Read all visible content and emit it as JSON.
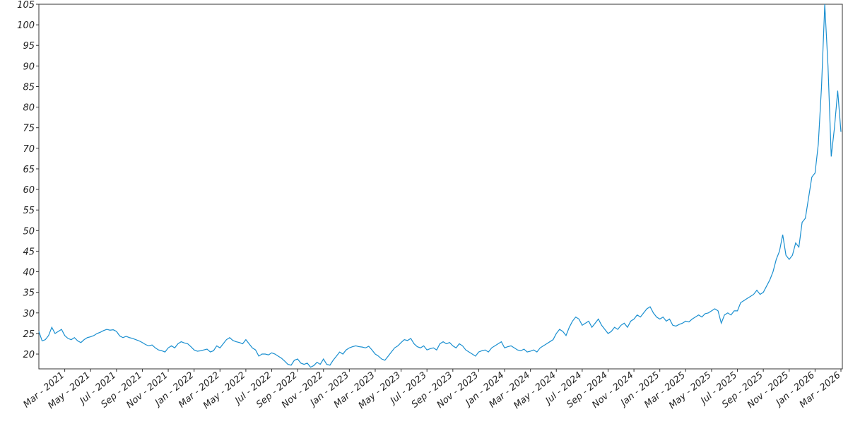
{
  "chart_data": {
    "type": "line",
    "color": "#1a8fd0",
    "ylim": [
      16.4,
      105
    ],
    "yticks": [
      20,
      25,
      30,
      35,
      40,
      45,
      50,
      55,
      60,
      65,
      70,
      75,
      80,
      85,
      90,
      95,
      100,
      105
    ],
    "categories": [
      null,
      null,
      null,
      null,
      null,
      null,
      null,
      null,
      "Mar - 2021",
      null,
      null,
      null,
      null,
      null,
      null,
      null,
      "May - 2021",
      null,
      null,
      null,
      null,
      null,
      null,
      null,
      "Jul - 2021",
      null,
      null,
      null,
      null,
      null,
      null,
      null,
      "Sep - 2021",
      null,
      null,
      null,
      null,
      null,
      null,
      null,
      "Nov - 2021",
      null,
      null,
      null,
      null,
      null,
      null,
      null,
      "Jan - 2022",
      null,
      null,
      null,
      null,
      null,
      null,
      null,
      "Mar - 2022",
      null,
      null,
      null,
      null,
      null,
      null,
      null,
      "May - 2022",
      null,
      null,
      null,
      null,
      null,
      null,
      null,
      "Jul - 2022",
      null,
      null,
      null,
      null,
      null,
      null,
      null,
      "Sep - 2022",
      null,
      null,
      null,
      null,
      null,
      null,
      null,
      "Nov - 2022",
      null,
      null,
      null,
      null,
      null,
      null,
      null,
      "Jan - 2023",
      null,
      null,
      null,
      null,
      null,
      null,
      null,
      "Mar - 2023",
      null,
      null,
      null,
      null,
      null,
      null,
      null,
      "May - 2023",
      null,
      null,
      null,
      null,
      null,
      null,
      null,
      "Jul - 2023",
      null,
      null,
      null,
      null,
      null,
      null,
      null,
      "Sep - 2023",
      null,
      null,
      null,
      null,
      null,
      null,
      null,
      "Nov - 2023",
      null,
      null,
      null,
      null,
      null,
      null,
      null,
      "Jan - 2024",
      null,
      null,
      null,
      null,
      null,
      null,
      null,
      "Mar - 2024",
      null,
      null,
      null,
      null,
      null,
      null,
      null,
      "May - 2024",
      null,
      null,
      null,
      null,
      null,
      null,
      null,
      "Jul - 2024",
      null,
      null,
      null,
      null,
      null,
      null,
      null,
      "Sep - 2024",
      null,
      null,
      null,
      null,
      null,
      null,
      null,
      "Nov - 2024",
      null,
      null,
      null,
      null,
      null,
      null,
      null,
      "Jan - 2025",
      null,
      null,
      null,
      null,
      null,
      null,
      null,
      "Mar - 2025",
      null,
      null,
      null,
      null,
      null,
      null,
      null,
      "May - 2025",
      null,
      null,
      null,
      null,
      null,
      null,
      null,
      "Jul - 2025",
      null,
      null,
      null,
      null,
      null,
      null,
      null,
      "Sep - 2025",
      null,
      null,
      null,
      null,
      null,
      null,
      null,
      "Nov - 2025",
      null,
      null,
      null,
      null,
      null,
      null,
      null,
      "Jan - 2026",
      null,
      null,
      null,
      null,
      null,
      null,
      null,
      "Mar - 2026"
    ],
    "values": [
      25.5,
      23.2,
      23.5,
      24.5,
      26.5,
      25,
      25.5,
      26,
      24.5,
      23.8,
      23.5,
      24,
      23.2,
      22.8,
      23.5,
      24,
      24.2,
      24.5,
      25,
      25.3,
      25.7,
      26,
      25.8,
      25.9,
      25.5,
      24.4,
      24,
      24.3,
      24,
      23.8,
      23.5,
      23.2,
      22.8,
      22.3,
      22,
      22.2,
      21.5,
      21,
      20.8,
      20.5,
      21.5,
      22,
      21.5,
      22.5,
      23,
      22.7,
      22.5,
      21.8,
      21,
      20.7,
      20.8,
      21,
      21.2,
      20.5,
      20.8,
      22,
      21.5,
      22.5,
      23.5,
      24,
      23.3,
      23,
      22.8,
      22.5,
      23.5,
      22.5,
      21.5,
      21,
      19.5,
      20,
      20,
      19.8,
      20.3,
      20,
      19.5,
      19,
      18.3,
      17.5,
      17.3,
      18.5,
      18.8,
      17.8,
      17.5,
      17.8,
      16.8,
      17.2,
      18,
      17.5,
      18.8,
      17.5,
      17.3,
      18.5,
      19.5,
      20.5,
      20,
      21,
      21.5,
      21.8,
      22,
      21.8,
      21.7,
      21.5,
      21.9,
      21,
      20,
      19.5,
      18.8,
      18.5,
      19.5,
      20.5,
      21.5,
      22,
      22.8,
      23.5,
      23.3,
      23.8,
      22.5,
      21.8,
      21.5,
      22,
      21,
      21.3,
      21.5,
      21,
      22.5,
      23,
      22.5,
      22.8,
      22,
      21.5,
      22.5,
      22,
      21,
      20.5,
      20,
      19.5,
      20.5,
      20.8,
      21,
      20.5,
      21.5,
      22,
      22.5,
      23,
      21.5,
      21.8,
      22,
      21.5,
      21,
      20.8,
      21.2,
      20.5,
      20.7,
      21,
      20.5,
      21.5,
      22,
      22.5,
      23,
      23.5,
      25,
      26,
      25.5,
      24.5,
      26.5,
      28,
      29,
      28.5,
      27,
      27.5,
      28,
      26.5,
      27.5,
      28.5,
      27,
      26,
      25,
      25.5,
      26.5,
      26,
      27,
      27.5,
      26.5,
      28,
      28.5,
      29.5,
      29,
      30,
      31,
      31.5,
      30,
      29,
      28.5,
      29,
      28,
      28.5,
      27,
      26.8,
      27.2,
      27.5,
      28,
      27.8,
      28.5,
      29,
      29.5,
      29,
      29.8,
      30,
      30.5,
      31,
      30.5,
      27.5,
      29.5,
      30,
      29.5,
      30.5,
      30.5,
      32.5,
      33,
      33.5,
      34,
      34.5,
      35.5,
      34.5,
      35,
      36.5,
      38,
      40,
      43,
      45,
      49,
      44,
      43,
      44,
      47,
      46,
      52,
      53,
      58,
      63,
      64,
      71,
      85,
      105,
      90,
      68,
      75,
      84,
      74
    ]
  }
}
